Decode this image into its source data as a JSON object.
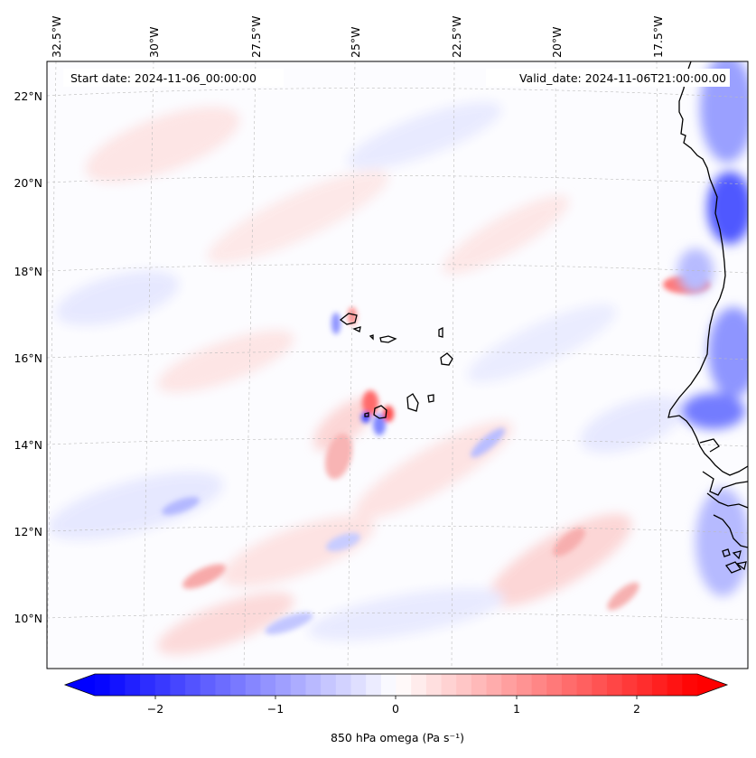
{
  "map": {
    "start_label": "Start date: 2024-11-06_00:00:00",
    "valid_label": "Valid_date: 2024-11-06T21:00:00.00",
    "lon_ticks": [
      "32.5°W",
      "30°W",
      "27.5°W",
      "25°W",
      "22.5°W",
      "20°W",
      "17.5°W"
    ],
    "lat_ticks": [
      "22°N",
      "20°N",
      "18°N",
      "16°N",
      "14°N",
      "12°N",
      "10°N"
    ],
    "field": "850 hPa omega",
    "features": [
      "Cape Verde islands",
      "West African coastline"
    ]
  },
  "colorbar": {
    "label": "850 hPa omega (Pa s⁻¹)",
    "ticks": [
      "−2",
      "−1",
      "0",
      "1",
      "2"
    ],
    "min": -2.5,
    "max": 2.5,
    "extend": "both",
    "colormap": "bwr",
    "colors": {
      "low": "#0000ff",
      "mid": "#ffffff",
      "high": "#ff0000"
    }
  }
}
